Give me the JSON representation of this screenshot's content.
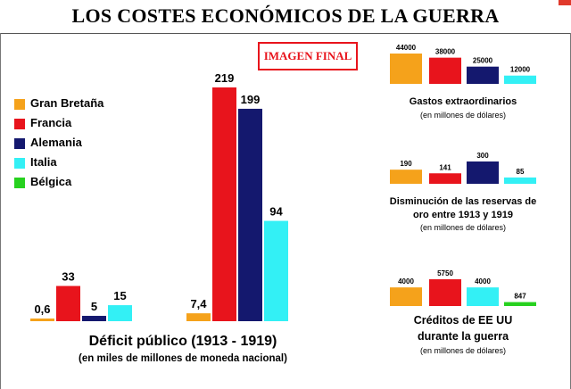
{
  "header": {
    "title": "LOS COSTES ECONÓMICOS DE LA GUERRA"
  },
  "stamp": {
    "label": "IMAGEN FINAL"
  },
  "colors": {
    "gran_bretana": "#f5a21b",
    "francia": "#e8141c",
    "alemania": "#14186e",
    "italia": "#33f0f5",
    "belgica": "#27d11f"
  },
  "legend": [
    {
      "label": "Gran Bretaña",
      "color": "#f5a21b"
    },
    {
      "label": "Francia",
      "color": "#e8141c"
    },
    {
      "label": "Alemania",
      "color": "#14186e"
    },
    {
      "label": "Italia",
      "color": "#33f0f5"
    },
    {
      "label": "Bélgica",
      "color": "#27d11f"
    }
  ],
  "chart_data": [
    {
      "type": "bar",
      "title": "Déficit público (1913 - 1919)",
      "subtitle": "(en miles de millones de moneda nacional)",
      "groups": [
        {
          "bars": [
            {
              "series": "Gran Bretaña",
              "value": 0.6,
              "label": "0,6",
              "color": "#f5a21b"
            },
            {
              "series": "Francia",
              "value": 33,
              "label": "33",
              "color": "#e8141c"
            },
            {
              "series": "Alemania",
              "value": 5,
              "label": "5",
              "color": "#14186e"
            },
            {
              "series": "Italia",
              "value": 15,
              "label": "15",
              "color": "#33f0f5"
            }
          ]
        },
        {
          "bars": [
            {
              "series": "Gran Bretaña",
              "value": 7.4,
              "label": "7,4",
              "color": "#f5a21b"
            },
            {
              "series": "Francia",
              "value": 219,
              "label": "219",
              "color": "#e8141c"
            },
            {
              "series": "Alemania",
              "value": 199,
              "label": "199",
              "color": "#14186e"
            },
            {
              "series": "Italia",
              "value": 94,
              "label": "94",
              "color": "#33f0f5"
            }
          ]
        }
      ]
    },
    {
      "type": "bar",
      "title": "Gastos extraordinarios",
      "subtitle": "(en millones de dólares)",
      "categories": [
        "Gran Bretaña",
        "Francia",
        "Alemania",
        "Italia"
      ],
      "values": [
        44000,
        38000,
        25000,
        12000
      ],
      "labels": [
        "44000",
        "38000",
        "25000",
        "12000"
      ],
      "colors": [
        "#f5a21b",
        "#e8141c",
        "#14186e",
        "#33f0f5"
      ]
    },
    {
      "type": "bar",
      "title_lines": [
        "Disminución de las reservas de",
        "oro entre 1913 y 1919"
      ],
      "subtitle": "(en millones de dólares)",
      "categories": [
        "Gran Bretaña",
        "Francia",
        "Alemania",
        "Italia"
      ],
      "values": [
        190,
        141,
        300,
        85
      ],
      "labels": [
        "190",
        "141",
        "300",
        "85"
      ],
      "colors": [
        "#f5a21b",
        "#e8141c",
        "#14186e",
        "#33f0f5"
      ]
    },
    {
      "type": "bar",
      "title_lines": [
        "Créditos de EE UU",
        "durante la guerra"
      ],
      "subtitle": "(en millones de dólares)",
      "categories": [
        "Gran Bretaña",
        "Francia",
        "Italia",
        "Bélgica"
      ],
      "values": [
        4000,
        5750,
        4000,
        847
      ],
      "labels": [
        "4000",
        "5750",
        "4000",
        "847"
      ],
      "colors": [
        "#f5a21b",
        "#e8141c",
        "#33f0f5",
        "#27d11f"
      ]
    }
  ]
}
